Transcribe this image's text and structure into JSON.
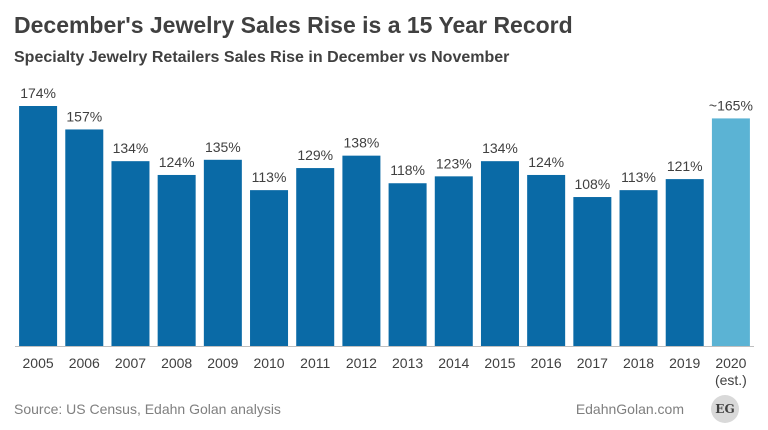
{
  "header": {
    "title": "December's Jewelry Sales Rise is a 15 Year Record",
    "subtitle": "Specialty Jewelry Retailers Sales Rise in December vs November"
  },
  "footer": {
    "source": "Source: US Census, Edahn Golan analysis",
    "site": "EdahnGolan.com",
    "logo_text": "EG"
  },
  "colors": {
    "bar": "#0a6aa6",
    "bar_estimate": "#5bb3d4",
    "text": "#404040",
    "axis": "#bfbfbf"
  },
  "chart_data": {
    "type": "bar",
    "title": "December's Jewelry Sales Rise is a 15 Year Record",
    "subtitle": "Specialty Jewelry Retailers Sales Rise in December vs November",
    "categories": [
      "2005",
      "2006",
      "2007",
      "2008",
      "2009",
      "2010",
      "2011",
      "2012",
      "2013",
      "2014",
      "2015",
      "2016",
      "2017",
      "2018",
      "2019",
      "2020"
    ],
    "category_sublabels": [
      "",
      "",
      "",
      "",
      "",
      "",
      "",
      "",
      "",
      "",
      "",
      "",
      "",
      "",
      "",
      "(est.)"
    ],
    "values": [
      174,
      157,
      134,
      124,
      135,
      113,
      129,
      138,
      118,
      123,
      134,
      124,
      108,
      113,
      121,
      165
    ],
    "data_labels": [
      "174%",
      "157%",
      "134%",
      "124%",
      "135%",
      "113%",
      "129%",
      "138%",
      "118%",
      "123%",
      "134%",
      "124%",
      "108%",
      "113%",
      "121%",
      "~165%"
    ],
    "estimated": [
      false,
      false,
      false,
      false,
      false,
      false,
      false,
      false,
      false,
      false,
      false,
      false,
      false,
      false,
      false,
      true
    ],
    "ylim": [
      0,
      174
    ],
    "xlabel": "",
    "ylabel": "",
    "grid": false,
    "legend": "none"
  }
}
